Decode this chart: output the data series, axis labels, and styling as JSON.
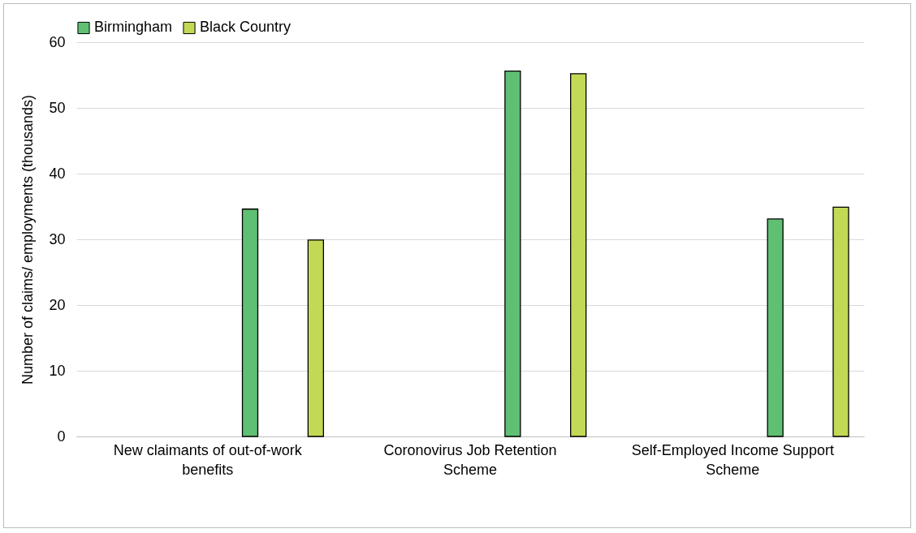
{
  "chart_data": {
    "type": "bar",
    "ylabel": "Number of claims/ employments (thousands)",
    "categories": [
      "New claimants of out-of-work benefits",
      "Coronovirus Job Retention Scheme",
      "Self-Employed Income Support Scheme"
    ],
    "series": [
      {
        "name": "Birmingham",
        "color": "#5fbf73",
        "values": [
          34.6,
          55.6,
          33.1
        ]
      },
      {
        "name": "Black Country",
        "color": "#c2d955",
        "values": [
          29.9,
          55.2,
          34.9
        ]
      }
    ],
    "ylim": [
      0,
      60
    ],
    "yticks": [
      0,
      10,
      20,
      30,
      40,
      50,
      60
    ],
    "grid": "y",
    "legend": "top"
  }
}
